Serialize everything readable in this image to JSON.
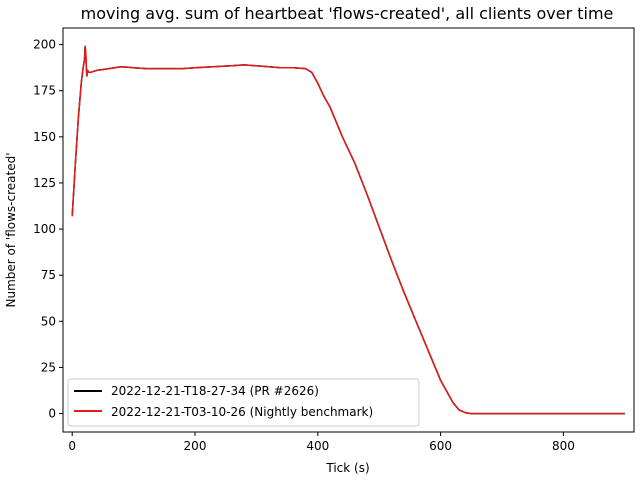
{
  "chart_data": {
    "type": "line",
    "title": "moving avg. sum of heartbeat 'flows-created', all clients over time",
    "xlabel": "Tick (s)",
    "ylabel": "Number of 'flows-created'",
    "xlim": [
      -15,
      915
    ],
    "ylim": [
      -10,
      209
    ],
    "xticks": [
      0,
      200,
      400,
      600,
      800
    ],
    "yticks": [
      0,
      25,
      50,
      75,
      100,
      125,
      150,
      175,
      200
    ],
    "grid": false,
    "legend_position": "lower-left",
    "series": [
      {
        "name": "2022-12-21-T18-27-34 (PR #2626)",
        "color": "#000000",
        "x": [
          0,
          5,
          10,
          15,
          18,
          20,
          21,
          22,
          23,
          24,
          25,
          27,
          30,
          40,
          60,
          80,
          100,
          120,
          150,
          180,
          200,
          230,
          260,
          280,
          300,
          320,
          340,
          360,
          380,
          390,
          400,
          410,
          420,
          440,
          460,
          480,
          500,
          520,
          540,
          560,
          580,
          600,
          620,
          630,
          640,
          650,
          660,
          670,
          680,
          700,
          750,
          800,
          850,
          900
        ],
        "y": [
          107,
          135,
          160,
          180,
          188,
          192,
          199,
          196,
          188,
          183,
          186,
          185,
          185,
          186,
          187,
          188,
          187.5,
          187,
          187,
          187,
          187.5,
          188,
          188.5,
          189,
          188.5,
          188,
          187.5,
          187.5,
          187,
          185,
          179,
          172,
          166,
          150,
          136,
          119,
          101,
          83,
          66,
          50,
          34,
          18,
          6,
          2,
          0.5,
          0,
          0,
          0,
          0,
          0,
          0,
          0,
          0,
          0
        ]
      },
      {
        "name": "2022-12-21-T03-10-26 (Nightly benchmark)",
        "color": "#e41a1c",
        "x": [
          0,
          5,
          10,
          15,
          18,
          20,
          21,
          22,
          23,
          24,
          25,
          27,
          30,
          40,
          60,
          80,
          100,
          120,
          150,
          180,
          200,
          230,
          260,
          280,
          300,
          320,
          340,
          360,
          380,
          390,
          400,
          410,
          420,
          440,
          460,
          480,
          500,
          520,
          540,
          560,
          580,
          600,
          620,
          630,
          640,
          650,
          660,
          670,
          680,
          700,
          750,
          800,
          850,
          900
        ],
        "y": [
          107,
          135,
          160,
          180,
          188,
          192,
          199,
          196,
          188,
          183,
          186,
          185,
          185,
          186,
          187,
          188,
          187.5,
          187,
          187,
          187,
          187.5,
          188,
          188.5,
          189,
          188.5,
          188,
          187.5,
          187.5,
          187,
          185,
          179,
          172,
          166,
          150,
          136,
          119,
          101,
          83,
          66,
          50,
          34,
          18,
          6,
          2,
          0.5,
          0,
          0,
          0,
          0,
          0,
          0,
          0,
          0,
          0
        ]
      }
    ]
  }
}
